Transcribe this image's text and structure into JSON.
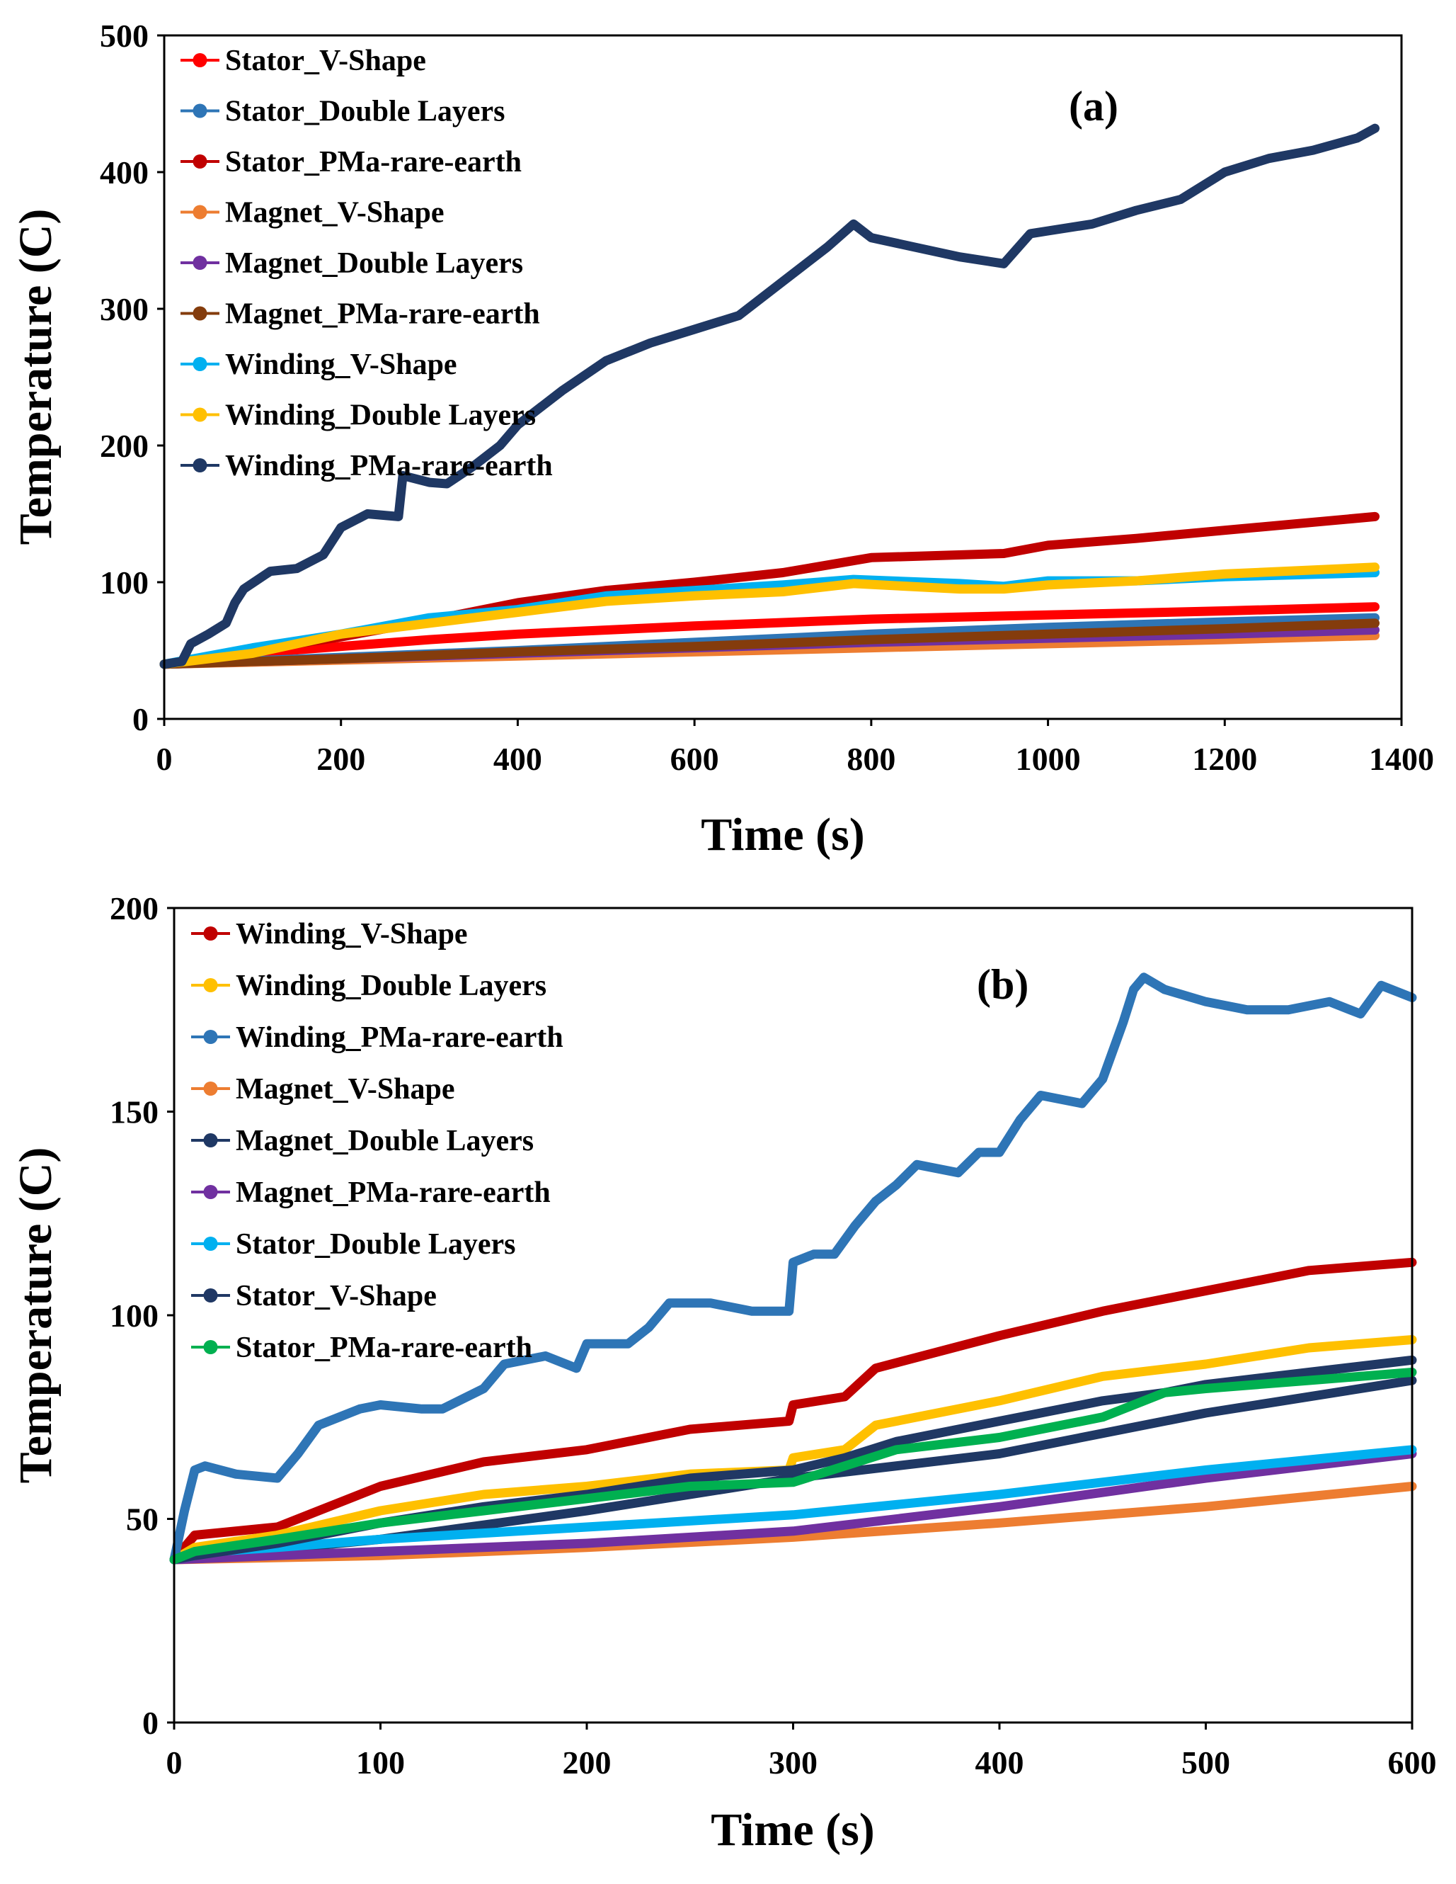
{
  "chart_data": [
    {
      "type": "line",
      "panel_label": "(a)",
      "xlabel": "Time (s)",
      "ylabel": "Temperature (C)",
      "xlim": [
        0,
        1400
      ],
      "ylim": [
        0,
        500
      ],
      "xticks": [
        0,
        200,
        400,
        600,
        800,
        1000,
        1200,
        1400
      ],
      "yticks": [
        0,
        100,
        200,
        300,
        400,
        500
      ],
      "legend_position": "top-left",
      "series": [
        {
          "name": "Stator_V-Shape",
          "color": "#ff0000",
          "x": [
            0,
            100,
            200,
            300,
            400,
            600,
            800,
            1000,
            1200,
            1370
          ],
          "y": [
            40,
            48,
            53,
            58,
            62,
            68,
            73,
            76,
            79,
            82
          ]
        },
        {
          "name": "Stator_Double Layers",
          "color": "#2e75b6",
          "x": [
            0,
            200,
            400,
            600,
            800,
            1000,
            1200,
            1370
          ],
          "y": [
            40,
            45,
            50,
            56,
            62,
            67,
            71,
            74
          ]
        },
        {
          "name": "Stator_PMa-rare-earth",
          "color": "#c00000",
          "x": [
            0,
            100,
            200,
            300,
            400,
            500,
            600,
            700,
            800,
            950,
            1000,
            1100,
            1200,
            1370
          ],
          "y": [
            40,
            50,
            60,
            72,
            85,
            94,
            100,
            107,
            118,
            121,
            127,
            132,
            138,
            148
          ]
        },
        {
          "name": "Magnet_V-Shape",
          "color": "#ed7d31",
          "x": [
            0,
            200,
            400,
            600,
            800,
            1000,
            1200,
            1370
          ],
          "y": [
            40,
            43,
            46,
            49,
            52,
            55,
            58,
            61
          ]
        },
        {
          "name": "Magnet_Double Layers",
          "color": "#7030a0",
          "x": [
            0,
            200,
            400,
            600,
            800,
            1000,
            1200,
            1370
          ],
          "y": [
            40,
            44,
            48,
            52,
            56,
            59,
            62,
            65
          ]
        },
        {
          "name": "Magnet_PMa-rare-earth",
          "color": "#843c0c",
          "x": [
            0,
            200,
            400,
            600,
            800,
            1000,
            1200,
            1370
          ],
          "y": [
            40,
            44,
            49,
            53,
            58,
            62,
            66,
            70
          ]
        },
        {
          "name": "Winding_V-Shape",
          "color": "#00b0f0",
          "x": [
            0,
            100,
            200,
            300,
            400,
            500,
            600,
            700,
            780,
            900,
            950,
            1000,
            1100,
            1200,
            1370
          ],
          "y": [
            40,
            52,
            62,
            74,
            80,
            90,
            94,
            98,
            102,
            99,
            97,
            101,
            101,
            104,
            107
          ]
        },
        {
          "name": "Winding_Double Layers",
          "color": "#ffc000",
          "x": [
            0,
            100,
            200,
            300,
            400,
            500,
            600,
            700,
            780,
            900,
            950,
            1000,
            1100,
            1200,
            1370
          ],
          "y": [
            40,
            48,
            62,
            70,
            78,
            86,
            90,
            93,
            99,
            95,
            95,
            98,
            101,
            106,
            111
          ]
        },
        {
          "name": "Winding_PMa-rare-earth",
          "color": "#1f3864",
          "x": [
            0,
            20,
            30,
            50,
            70,
            80,
            90,
            120,
            150,
            180,
            200,
            230,
            265,
            270,
            300,
            320,
            350,
            380,
            400,
            450,
            500,
            550,
            600,
            650,
            700,
            750,
            780,
            800,
            850,
            900,
            950,
            980,
            1000,
            1050,
            1100,
            1150,
            1200,
            1250,
            1300,
            1350,
            1370
          ],
          "y": [
            40,
            42,
            55,
            62,
            70,
            85,
            95,
            108,
            110,
            120,
            140,
            150,
            148,
            178,
            173,
            172,
            185,
            200,
            215,
            240,
            262,
            275,
            285,
            295,
            320,
            345,
            362,
            352,
            345,
            338,
            333,
            355,
            357,
            362,
            372,
            380,
            400,
            410,
            416,
            425,
            432
          ]
        }
      ]
    },
    {
      "type": "line",
      "panel_label": "(b)",
      "xlabel": "Time (s)",
      "ylabel": "Temperature (C)",
      "xlim": [
        0,
        600
      ],
      "ylim": [
        0,
        200
      ],
      "xticks": [
        0,
        100,
        200,
        300,
        400,
        500,
        600
      ],
      "yticks": [
        0,
        50,
        100,
        150,
        200
      ],
      "legend_position": "top-left",
      "series": [
        {
          "name": "Winding_V-Shape",
          "color": "#c00000",
          "x": [
            0,
            10,
            50,
            100,
            150,
            200,
            250,
            298,
            300,
            325,
            340,
            400,
            450,
            500,
            550,
            600
          ],
          "y": [
            40,
            46,
            48,
            58,
            64,
            67,
            72,
            74,
            78,
            80,
            87,
            95,
            101,
            106,
            111,
            113
          ]
        },
        {
          "name": "Winding_Double Layers",
          "color": "#ffc000",
          "x": [
            0,
            10,
            50,
            100,
            150,
            200,
            250,
            298,
            300,
            325,
            340,
            400,
            450,
            500,
            550,
            600
          ],
          "y": [
            40,
            43,
            46,
            52,
            56,
            58,
            61,
            62,
            65,
            67,
            73,
            79,
            85,
            88,
            92,
            94
          ]
        },
        {
          "name": "Winding_PMa-rare-earth",
          "color": "#2e75b6",
          "x": [
            0,
            5,
            10,
            15,
            30,
            50,
            60,
            70,
            80,
            90,
            100,
            120,
            130,
            150,
            160,
            180,
            195,
            200,
            220,
            230,
            240,
            260,
            280,
            298,
            300,
            310,
            320,
            330,
            340,
            350,
            360,
            370,
            380,
            390,
            400,
            410,
            420,
            430,
            440,
            450,
            460,
            465,
            470,
            480,
            500,
            520,
            540,
            560,
            570,
            575,
            585,
            600
          ],
          "y": [
            40,
            52,
            62,
            63,
            61,
            60,
            66,
            73,
            75,
            77,
            78,
            77,
            77,
            82,
            88,
            90,
            87,
            93,
            93,
            97,
            103,
            103,
            101,
            101,
            113,
            115,
            115,
            122,
            128,
            132,
            137,
            136,
            135,
            140,
            140,
            148,
            154,
            153,
            152,
            158,
            172,
            180,
            183,
            180,
            177,
            175,
            175,
            177,
            175,
            174,
            181,
            178
          ]
        },
        {
          "name": "Magnet_V-Shape",
          "color": "#ed7d31",
          "x": [
            0,
            100,
            200,
            300,
            400,
            500,
            600
          ],
          "y": [
            40,
            41,
            43,
            45.5,
            49,
            53,
            58
          ]
        },
        {
          "name": "Magnet_Double Layers",
          "color": "#1f3864",
          "x": [
            0,
            100,
            200,
            300,
            400,
            500,
            600
          ],
          "y": [
            40,
            45,
            52,
            60,
            66,
            76,
            84
          ]
        },
        {
          "name": "Magnet_PMa-rare-earth",
          "color": "#7030a0",
          "x": [
            0,
            100,
            200,
            300,
            400,
            500,
            600
          ],
          "y": [
            40,
            42,
            44,
            47,
            53,
            60,
            66
          ]
        },
        {
          "name": "Stator_Double Layers",
          "color": "#00b0f0",
          "x": [
            0,
            20,
            50,
            100,
            200,
            300,
            400,
            500,
            600
          ],
          "y": [
            40,
            42,
            43,
            45,
            48,
            51,
            56,
            62,
            67
          ]
        },
        {
          "name": "Stator_V-Shape",
          "color": "#203864",
          "x": [
            0,
            10,
            50,
            100,
            150,
            200,
            250,
            300,
            325,
            350,
            400,
            450,
            480,
            500,
            550,
            600
          ],
          "y": [
            40,
            41,
            44,
            49,
            53,
            56,
            60,
            62,
            65,
            69,
            74,
            79,
            81,
            83,
            86,
            89
          ]
        },
        {
          "name": "Stator_PMa-rare-earth",
          "color": "#00b050",
          "x": [
            0,
            10,
            50,
            100,
            150,
            200,
            250,
            300,
            325,
            350,
            400,
            450,
            480,
            500,
            550,
            600
          ],
          "y": [
            40,
            42,
            45,
            49,
            52,
            55,
            58,
            59,
            63,
            67,
            70,
            75,
            81,
            82,
            84,
            86
          ]
        }
      ]
    }
  ]
}
